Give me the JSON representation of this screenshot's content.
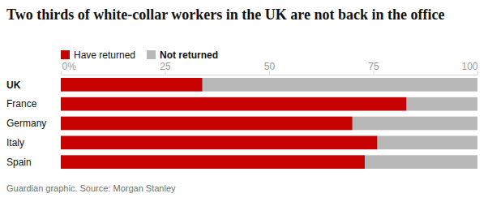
{
  "chart_data": {
    "type": "bar",
    "orientation": "horizontal",
    "stacked": true,
    "title": "Two thirds of white-collar workers in the UK are not back in the office",
    "annotations": [
      "Guardian graphic. Source: Morgan Stanley"
    ],
    "categories": [
      "UK",
      "France",
      "Germany",
      "Italy",
      "Spain"
    ],
    "series": [
      {
        "name": "Have returned",
        "color": "#c70000",
        "values": [
          34,
          83,
          70,
          76,
          73
        ]
      },
      {
        "name": "Not returned",
        "color": "#b8b8b8",
        "values": [
          66,
          17,
          30,
          24,
          27
        ]
      }
    ],
    "xlim": [
      0,
      100
    ],
    "xticks": [
      {
        "value": 0,
        "label": "0%"
      },
      25,
      50,
      75,
      100
    ],
    "legend": "top-left",
    "grid": false
  }
}
